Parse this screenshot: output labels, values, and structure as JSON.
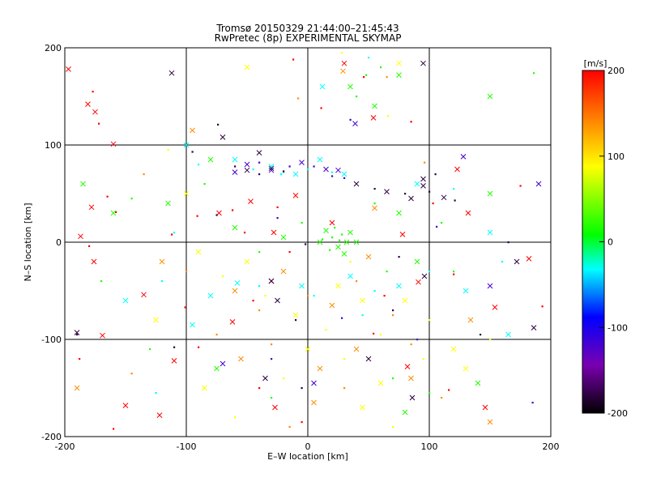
{
  "chart_data": {
    "type": "scatter",
    "title": "Tromsø 20150329 21:44:00–21:45:43",
    "subtitle": "RwPretec (8p) EXPERIMENTAL SKYMAP",
    "xlabel": "E–W location [km]",
    "ylabel": "N–S location [km]",
    "xlim": [
      -200,
      200
    ],
    "ylim": [
      -200,
      200
    ],
    "x_ticks": [
      "-200",
      "-100",
      "0",
      "100",
      "200"
    ],
    "y_ticks": [
      "-200",
      "-100",
      "0",
      "100",
      "200"
    ],
    "grid": true,
    "grid_lines": [
      -100,
      0,
      100
    ],
    "colorbar": {
      "label": "[m/s]",
      "range": [
        -200,
        200
      ],
      "ticks": [
        "200",
        "100",
        "0",
        "-100",
        "-200"
      ],
      "colormap": [
        "#000000",
        "#7a00b0",
        "#0000ff",
        "#00ffff",
        "#00ff00",
        "#ffff00",
        "#ff8000",
        "#ff0000"
      ]
    },
    "marker_types": [
      "dot",
      "x"
    ],
    "series": [
      {
        "velocity": 200,
        "points": [
          [
            -197,
            178
          ],
          [
            -177,
            155
          ],
          [
            -175,
            134
          ],
          [
            -172,
            122
          ],
          [
            -160,
            101
          ],
          [
            -165,
            47
          ],
          [
            -178,
            36
          ],
          [
            -158,
            31
          ],
          [
            -187,
            6
          ],
          [
            -180,
            -4
          ],
          [
            -176,
            -20
          ],
          [
            -112,
            8
          ],
          [
            -135,
            -54
          ],
          [
            -101,
            -67
          ],
          [
            -169,
            -96
          ],
          [
            -91,
            27
          ],
          [
            -73,
            30
          ],
          [
            -62,
            33
          ],
          [
            -47,
            42
          ],
          [
            -25,
            36
          ],
          [
            -10,
            48
          ],
          [
            -52,
            10
          ],
          [
            -28,
            10
          ],
          [
            -15,
            -10
          ],
          [
            -30,
            -40
          ],
          [
            -45,
            -60
          ],
          [
            -62,
            -82
          ],
          [
            -90,
            -108
          ],
          [
            -110,
            -122
          ],
          [
            -160,
            -192
          ],
          [
            -122,
            -178
          ],
          [
            -40,
            -150
          ],
          [
            -27,
            -170
          ],
          [
            -5,
            -185
          ],
          [
            20,
            20
          ],
          [
            11,
            138
          ],
          [
            30,
            184
          ],
          [
            46,
            170
          ],
          [
            54,
            128
          ],
          [
            85,
            124
          ],
          [
            182,
            -17
          ],
          [
            193,
            -66
          ],
          [
            154,
            -67
          ],
          [
            120,
            -33
          ],
          [
            132,
            30
          ],
          [
            175,
            58
          ],
          [
            123,
            75
          ],
          [
            103,
            40
          ],
          [
            78,
            8
          ],
          [
            63,
            -55
          ],
          [
            91,
            -41
          ],
          [
            54,
            -94
          ],
          [
            82,
            -128
          ],
          [
            116,
            -152
          ],
          [
            146,
            -170
          ],
          [
            -12,
            188
          ],
          [
            -181,
            142
          ],
          [
            -188,
            -120
          ],
          [
            -150,
            -168
          ]
        ]
      },
      {
        "velocity": 140,
        "points": [
          [
            -120,
            -20
          ],
          [
            -100,
            -30
          ],
          [
            -60,
            -50
          ],
          [
            -40,
            -70
          ],
          [
            -20,
            -30
          ],
          [
            0,
            -55
          ],
          [
            20,
            -65
          ],
          [
            40,
            -40
          ],
          [
            50,
            -15
          ],
          [
            -75,
            -95
          ],
          [
            -55,
            -120
          ],
          [
            -30,
            -105
          ],
          [
            10,
            -130
          ],
          [
            30,
            -150
          ],
          [
            5,
            -165
          ],
          [
            -15,
            -190
          ],
          [
            40,
            -110
          ],
          [
            70,
            -75
          ],
          [
            85,
            -140
          ],
          [
            110,
            -160
          ],
          [
            150,
            -185
          ],
          [
            -145,
            -135
          ],
          [
            -190,
            -150
          ],
          [
            -135,
            70
          ],
          [
            -95,
            115
          ],
          [
            65,
            170
          ],
          [
            29,
            176
          ],
          [
            96,
            82
          ],
          [
            55,
            35
          ],
          [
            85,
            -105
          ],
          [
            134,
            -80
          ],
          [
            -8,
            148
          ]
        ]
      },
      {
        "velocity": 90,
        "points": [
          [
            -90,
            -10
          ],
          [
            -70,
            -35
          ],
          [
            -50,
            -20
          ],
          [
            -35,
            -55
          ],
          [
            -10,
            -75
          ],
          [
            15,
            -90
          ],
          [
            25,
            -45
          ],
          [
            35,
            -20
          ],
          [
            45,
            -60
          ],
          [
            60,
            -95
          ],
          [
            80,
            -60
          ],
          [
            100,
            -80
          ],
          [
            120,
            -110
          ],
          [
            30,
            -120
          ],
          [
            0,
            -110
          ],
          [
            -20,
            -140
          ],
          [
            45,
            -170
          ],
          [
            70,
            -190
          ],
          [
            60,
            -145
          ],
          [
            95,
            -120
          ],
          [
            130,
            -130
          ],
          [
            150,
            -100
          ],
          [
            -100,
            50
          ],
          [
            -115,
            95
          ],
          [
            -50,
            180
          ],
          [
            28,
            195
          ],
          [
            75,
            184
          ],
          [
            66,
            130
          ],
          [
            -85,
            -150
          ],
          [
            -60,
            -180
          ],
          [
            -125,
            -80
          ]
        ]
      },
      {
        "velocity": 20,
        "points": [
          [
            -160,
            30
          ],
          [
            -145,
            45
          ],
          [
            -115,
            40
          ],
          [
            -85,
            60
          ],
          [
            -60,
            15
          ],
          [
            -40,
            -10
          ],
          [
            -20,
            5
          ],
          [
            -5,
            20
          ],
          [
            10,
            0
          ],
          [
            20,
            5
          ],
          [
            25,
            -5
          ],
          [
            28,
            8
          ],
          [
            32,
            0
          ],
          [
            18,
            -8
          ],
          [
            15,
            12
          ],
          [
            22,
            15
          ],
          [
            30,
            -12
          ],
          [
            26,
            2
          ],
          [
            35,
            10
          ],
          [
            12,
            3
          ],
          [
            40,
            0
          ],
          [
            55,
            40
          ],
          [
            75,
            30
          ],
          [
            65,
            -30
          ],
          [
            90,
            -20
          ],
          [
            110,
            20
          ],
          [
            150,
            50
          ],
          [
            40,
            150
          ],
          [
            35,
            160
          ],
          [
            48,
            172
          ],
          [
            55,
            140
          ],
          [
            60,
            180
          ],
          [
            75,
            172
          ],
          [
            70,
            -140
          ],
          [
            80,
            -175
          ],
          [
            100,
            -155
          ],
          [
            140,
            -145
          ],
          [
            -130,
            -110
          ],
          [
            -75,
            -130
          ],
          [
            -30,
            -160
          ],
          [
            -80,
            85
          ],
          [
            -170,
            -40
          ],
          [
            -185,
            60
          ],
          [
            186,
            174
          ],
          [
            150,
            150
          ],
          [
            120,
            -30
          ]
        ]
      },
      {
        "velocity": -30,
        "points": [
          [
            -100,
            100
          ],
          [
            -90,
            80
          ],
          [
            -60,
            85
          ],
          [
            -45,
            75
          ],
          [
            -30,
            78
          ],
          [
            -20,
            72
          ],
          [
            -10,
            70
          ],
          [
            0,
            75
          ],
          [
            10,
            85
          ],
          [
            20,
            72
          ],
          [
            30,
            70
          ],
          [
            -120,
            -40
          ],
          [
            -80,
            -55
          ],
          [
            -40,
            -45
          ],
          [
            -5,
            -45
          ],
          [
            5,
            -55
          ],
          [
            35,
            -35
          ],
          [
            55,
            -50
          ],
          [
            75,
            -45
          ],
          [
            100,
            -30
          ],
          [
            130,
            -50
          ],
          [
            160,
            -20
          ],
          [
            150,
            10
          ],
          [
            120,
            55
          ],
          [
            90,
            60
          ],
          [
            -110,
            10
          ],
          [
            -150,
            -60
          ],
          [
            -125,
            -155
          ],
          [
            -95,
            -85
          ],
          [
            -22,
            70
          ],
          [
            12,
            160
          ],
          [
            50,
            190
          ],
          [
            -58,
            -42
          ],
          [
            45,
            -75
          ],
          [
            165,
            -95
          ]
        ]
      },
      {
        "velocity": -120,
        "points": [
          [
            -50,
            80
          ],
          [
            -40,
            82
          ],
          [
            -30,
            74
          ],
          [
            -15,
            78
          ],
          [
            -5,
            82
          ],
          [
            5,
            78
          ],
          [
            15,
            75
          ],
          [
            20,
            68
          ],
          [
            25,
            74
          ],
          [
            30,
            66
          ],
          [
            -60,
            72
          ],
          [
            35,
            126
          ],
          [
            39,
            122
          ],
          [
            106,
            16
          ],
          [
            128,
            88
          ],
          [
            -30,
            -120
          ],
          [
            5,
            -145
          ],
          [
            90,
            -100
          ],
          [
            150,
            -45
          ],
          [
            185,
            -165
          ],
          [
            190,
            60
          ],
          [
            -25,
            25
          ],
          [
            -70,
            -125
          ],
          [
            28,
            -78
          ]
        ]
      },
      {
        "velocity": -180,
        "points": [
          [
            -112,
            174
          ],
          [
            -74,
            121
          ],
          [
            -70,
            108
          ],
          [
            -60,
            78
          ],
          [
            -50,
            74
          ],
          [
            -40,
            70
          ],
          [
            -30,
            76
          ],
          [
            -20,
            73
          ],
          [
            40,
            60
          ],
          [
            55,
            55
          ],
          [
            65,
            52
          ],
          [
            80,
            50
          ],
          [
            95,
            58
          ],
          [
            100,
            52
          ],
          [
            112,
            46
          ],
          [
            121,
            43
          ],
          [
            95,
            65
          ],
          [
            105,
            70
          ],
          [
            85,
            45
          ],
          [
            -75,
            28
          ],
          [
            -30,
            -40
          ],
          [
            -10,
            -80
          ],
          [
            -25,
            -60
          ],
          [
            75,
            -15
          ],
          [
            96,
            -35
          ],
          [
            165,
            0
          ],
          [
            172,
            -20
          ],
          [
            -110,
            -108
          ],
          [
            -190,
            -93
          ],
          [
            -190,
            -95
          ],
          [
            -35,
            -140
          ],
          [
            -5,
            -150
          ],
          [
            50,
            -120
          ],
          [
            70,
            -70
          ],
          [
            186,
            -88
          ],
          [
            142,
            -95
          ],
          [
            -40,
            92
          ],
          [
            -95,
            93
          ],
          [
            95,
            184
          ],
          [
            -2,
            -2
          ],
          [
            86,
            -160
          ]
        ]
      }
    ]
  }
}
